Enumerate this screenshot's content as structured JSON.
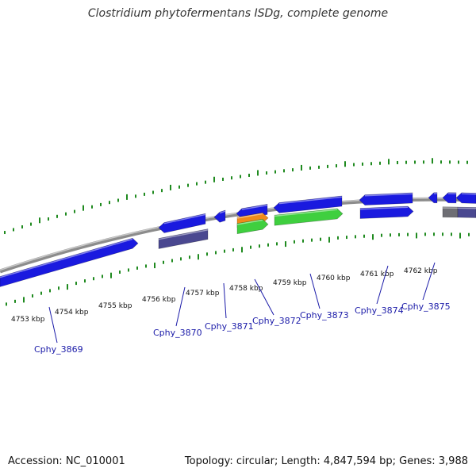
{
  "title": "Clostridium phytofermentans ISDg, complete genome",
  "footer": {
    "accession": "Accession: NC_010001",
    "topology": "Topology: circular; Length: 4,847,594 bp; Genes: 3,988"
  },
  "colors": {
    "gene_blue": "#1a1adf",
    "gene_purple": "#4a4890",
    "gene_gray": "#6e6e74",
    "gene_orange": "#ef8a1a",
    "gene_green": "#3fcf3f",
    "backbone": "#8c8c8c",
    "ticks": "#1f8a1f",
    "labels": "#1a1aa8"
  },
  "scale_labels": [
    "4753 kbp",
    "4754 kbp",
    "4755 kbp",
    "4756 kbp",
    "4757 kbp",
    "4758 kbp",
    "4759 kbp",
    "4760 kbp",
    "4761 kbp",
    "4762 kbp"
  ],
  "gene_labels": [
    "Cphy_3869",
    "Cphy_3870",
    "Cphy_3871",
    "Cphy_3872",
    "Cphy_3873",
    "Cphy_3874",
    "Cphy_3875"
  ]
}
